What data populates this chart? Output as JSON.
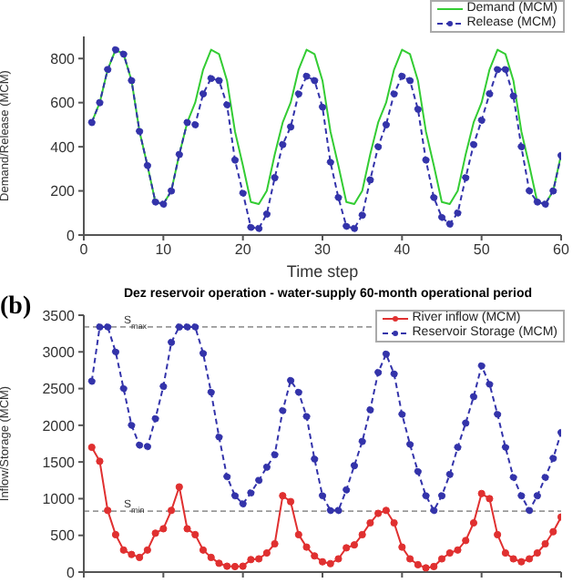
{
  "chart_data": [
    {
      "type": "line",
      "xlabel": "Time step",
      "ylabel": "Demand/Release (MCM)",
      "x": [
        1,
        2,
        3,
        4,
        5,
        6,
        7,
        8,
        9,
        10,
        11,
        12,
        13,
        14,
        15,
        16,
        17,
        18,
        19,
        20,
        21,
        22,
        23,
        24,
        25,
        26,
        27,
        28,
        29,
        30,
        31,
        32,
        33,
        34,
        35,
        36,
        37,
        38,
        39,
        40,
        41,
        42,
        43,
        44,
        45,
        46,
        47,
        48,
        49,
        50,
        51,
        52,
        53,
        54,
        55,
        56,
        57,
        58,
        59,
        60
      ],
      "xlim": [
        0,
        60
      ],
      "xticks": [
        0,
        10,
        20,
        30,
        40,
        50,
        60
      ],
      "ylim": [
        0,
        900
      ],
      "yticks": [
        0,
        200,
        400,
        600,
        800
      ],
      "legend": "top right",
      "series": [
        {
          "name": "Demand (MCM)",
          "color": "#33cc33",
          "line_style": "solid",
          "marker": "none",
          "values": [
            510,
            600,
            750,
            840,
            820,
            700,
            470,
            315,
            150,
            140,
            200,
            365,
            510,
            600,
            750,
            840,
            820,
            700,
            470,
            315,
            150,
            140,
            200,
            365,
            510,
            600,
            750,
            840,
            820,
            700,
            470,
            315,
            150,
            140,
            200,
            365,
            510,
            600,
            750,
            840,
            820,
            700,
            470,
            315,
            150,
            140,
            200,
            365,
            510,
            600,
            750,
            840,
            820,
            700,
            470,
            315,
            150,
            140,
            200,
            365
          ]
        },
        {
          "name": "Release (MCM)",
          "color": "#3333aa",
          "line_style": "dashed",
          "marker": "circle",
          "values": [
            510,
            600,
            750,
            840,
            820,
            700,
            470,
            315,
            150,
            140,
            200,
            365,
            510,
            500,
            640,
            710,
            700,
            590,
            340,
            190,
            35,
            30,
            95,
            260,
            410,
            490,
            640,
            720,
            700,
            580,
            330,
            170,
            40,
            30,
            90,
            250,
            400,
            500,
            640,
            720,
            700,
            570,
            340,
            170,
            80,
            50,
            100,
            260,
            410,
            520,
            640,
            750,
            750,
            630,
            400,
            200,
            150,
            140,
            200,
            360
          ]
        }
      ]
    },
    {
      "type": "line",
      "title": "Dez reservoir operation - water-supply 60-month operational period",
      "ylabel": "Inflow/Storage (MCM)",
      "annotations": [
        "(b)"
      ],
      "x": [
        1,
        2,
        3,
        4,
        5,
        6,
        7,
        8,
        9,
        10,
        11,
        12,
        13,
        14,
        15,
        16,
        17,
        18,
        19,
        20,
        21,
        22,
        23,
        24,
        25,
        26,
        27,
        28,
        29,
        30,
        31,
        32,
        33,
        34,
        35,
        36,
        37,
        38,
        39,
        40,
        41,
        42,
        43,
        44,
        45,
        46,
        47,
        48,
        49,
        50,
        51,
        52,
        53,
        54,
        55,
        56,
        57,
        58,
        59,
        60
      ],
      "xlim": [
        0,
        60
      ],
      "xticks": [
        {
          "value": 0,
          "label": null
        },
        {
          "value": 10,
          "label": null
        },
        {
          "value": 20,
          "label": null
        },
        {
          "value": 30,
          "label": null
        },
        {
          "value": 40,
          "label": null
        },
        {
          "value": 50,
          "label": null
        },
        {
          "value": 60,
          "label": null
        }
      ],
      "ylim": [
        0,
        3500
      ],
      "yticks": [
        0,
        500,
        1000,
        1500,
        2000,
        2500,
        3000,
        3500
      ],
      "tick_labels": "y",
      "legend": "top right",
      "ref_lines": [
        {
          "axis": "y",
          "value": 3340,
          "label": "S$_{max}$",
          "color": "#999999",
          "line_style": "dashed"
        },
        {
          "axis": "y",
          "value": 830,
          "label": "S$_{min}$",
          "color": "#999999",
          "line_style": "dashed"
        }
      ],
      "series": [
        {
          "name": "River inflow (MCM)",
          "color": "#e03030",
          "line_style": "solid",
          "marker": "circle",
          "values": [
            1700,
            1510,
            840,
            510,
            300,
            240,
            200,
            300,
            530,
            590,
            840,
            1160,
            590,
            510,
            300,
            200,
            120,
            80,
            75,
            80,
            170,
            180,
            260,
            385,
            1040,
            960,
            510,
            340,
            220,
            140,
            115,
            180,
            330,
            370,
            510,
            670,
            800,
            840,
            670,
            340,
            180,
            100,
            57,
            75,
            180,
            260,
            300,
            430,
            670,
            1070,
            1000,
            510,
            260,
            180,
            140,
            180,
            260,
            385,
            550,
            750
          ]
        },
        {
          "name": "Reservoir Storage (MCM)",
          "color": "#3333aa",
          "line_style": "dashed",
          "marker": "circle",
          "values": [
            2600,
            3340,
            3340,
            3000,
            2500,
            2000,
            1730,
            1710,
            2090,
            2530,
            3130,
            3340,
            3340,
            3340,
            2980,
            2450,
            1840,
            1300,
            1040,
            930,
            1080,
            1250,
            1430,
            1600,
            2200,
            2610,
            2450,
            2120,
            1540,
            1040,
            840,
            840,
            1120,
            1450,
            1780,
            2210,
            2720,
            2970,
            2700,
            2150,
            1740,
            1370,
            1040,
            840,
            1040,
            1330,
            1700,
            2030,
            2390,
            2810,
            2560,
            2150,
            1700,
            1290,
            1040,
            840,
            1040,
            1290,
            1550,
            1900
          ]
        }
      ]
    }
  ]
}
